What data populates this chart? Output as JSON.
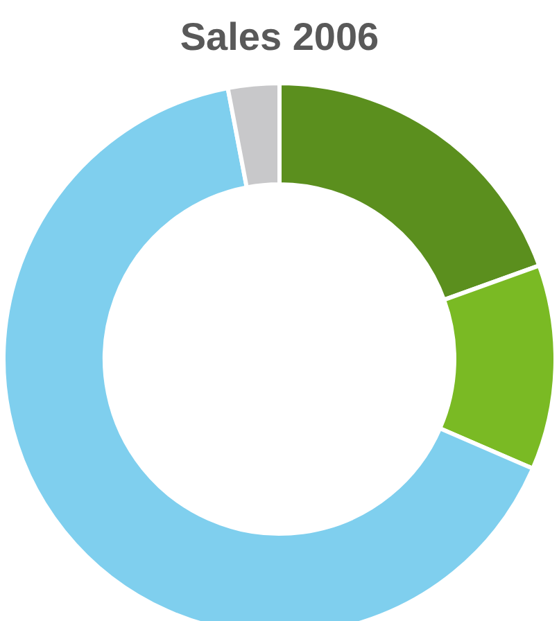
{
  "chart_data": {
    "type": "donut",
    "title": "Sales 2006",
    "categories": [
      null,
      null,
      null,
      null
    ],
    "values": [
      19.5,
      12,
      65.5,
      3
    ],
    "colors": [
      "#5b8f1e",
      "#7aba24",
      "#7fcfee",
      "#c8c8ca"
    ],
    "legend": false
  }
}
